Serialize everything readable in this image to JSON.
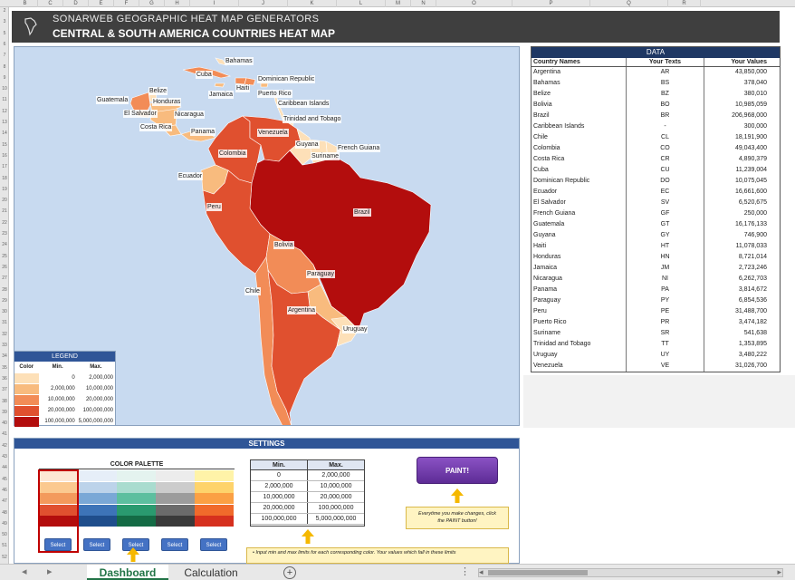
{
  "column_headers": [
    "B",
    "C",
    "D",
    "E",
    "F",
    "G",
    "H",
    "I",
    "J",
    "K",
    "L",
    "M",
    "N",
    "O",
    "P",
    "Q",
    "R"
  ],
  "row_numbers": [
    "2",
    "3",
    "5",
    "6",
    "7",
    "8",
    "9",
    "10",
    "11",
    "12",
    "13",
    "14",
    "15",
    "16",
    "17",
    "18",
    "19",
    "20",
    "21",
    "22",
    "23",
    "24",
    "25",
    "26",
    "27",
    "28",
    "29",
    "30",
    "31",
    "32",
    "33",
    "34",
    "35",
    "36",
    "37",
    "38",
    "39",
    "40",
    "41",
    "42",
    "43",
    "44",
    "45",
    "46",
    "47",
    "48",
    "49",
    "50",
    "51",
    "52"
  ],
  "header": {
    "subtitle": "SONARWEB GEOGRAPHIC HEAT MAP GENERATORS",
    "title": "CENTRAL & SOUTH AMERICA COUNTRIES HEAT MAP"
  },
  "map_labels": {
    "bahamas": "Bahamas",
    "cuba": "Cuba",
    "dominican_republic": "Dominican Republic",
    "haiti": "Haiti",
    "jamaica": "Jamaica",
    "puerto_rico": "Puerto Rico",
    "belize": "Belize",
    "guatemala": "Guatemala",
    "honduras": "Honduras",
    "el_salvador": "El Salvador",
    "nicaragua": "Nicaragua",
    "caribbean_islands": "Caribbean Islands",
    "costa_rica": "Costa Rica",
    "panama": "Panama",
    "trinidad": "Trinidad and Tobago",
    "venezuela": "Venezuela",
    "guyana": "Guyana",
    "colombia": "Colombia",
    "suriname": "Suriname",
    "french_guiana": "French Guiana",
    "ecuador": "Ecuador",
    "brazil": "Brazil",
    "peru": "Peru",
    "bolivia": "Bolivia",
    "paraguay": "Paraguay",
    "chile": "Chile",
    "argentina": "Argentina",
    "uruguay": "Uruguay"
  },
  "legend": {
    "title": "LEGEND",
    "col_color": "Color",
    "col_min": "Min.",
    "col_max": "Max.",
    "rows": [
      {
        "color": "#fde0b8",
        "min": "0",
        "max": "2,000,000"
      },
      {
        "color": "#f8bb7e",
        "min": "2,000,000",
        "max": "10,000,000"
      },
      {
        "color": "#f28c57",
        "min": "10,000,000",
        "max": "20,000,000"
      },
      {
        "color": "#e0502f",
        "min": "20,000,000",
        "max": "100,000,000"
      },
      {
        "color": "#b30d0d",
        "min": "100,000,000",
        "max": "5,000,000,000"
      }
    ]
  },
  "data_table": {
    "title": "DATA",
    "col_name": "Country Names",
    "col_code": "Your Texts",
    "col_value": "Your Values",
    "rows": [
      {
        "name": "Argentina",
        "code": "AR",
        "value": "43,850,000"
      },
      {
        "name": "Bahamas",
        "code": "BS",
        "value": "378,040"
      },
      {
        "name": "Belize",
        "code": "BZ",
        "value": "380,010"
      },
      {
        "name": "Bolivia",
        "code": "BO",
        "value": "10,985,059"
      },
      {
        "name": "Brazil",
        "code": "BR",
        "value": "206,968,000"
      },
      {
        "name": "Caribbean Islands",
        "code": "-",
        "value": "300,000"
      },
      {
        "name": "Chile",
        "code": "CL",
        "value": "18,191,900"
      },
      {
        "name": "Colombia",
        "code": "CO",
        "value": "49,043,400"
      },
      {
        "name": "Costa Rica",
        "code": "CR",
        "value": "4,890,379"
      },
      {
        "name": "Cuba",
        "code": "CU",
        "value": "11,239,004"
      },
      {
        "name": "Dominican Republic",
        "code": "DO",
        "value": "10,075,045"
      },
      {
        "name": "Ecuador",
        "code": "EC",
        "value": "16,661,600"
      },
      {
        "name": "El Salvador",
        "code": "SV",
        "value": "6,520,675"
      },
      {
        "name": "French Guiana",
        "code": "GF",
        "value": "250,000"
      },
      {
        "name": "Guatemala",
        "code": "GT",
        "value": "16,176,133"
      },
      {
        "name": "Guyana",
        "code": "GY",
        "value": "746,900"
      },
      {
        "name": "Haiti",
        "code": "HT",
        "value": "11,078,033"
      },
      {
        "name": "Honduras",
        "code": "HN",
        "value": "8,721,014"
      },
      {
        "name": "Jamaica",
        "code": "JM",
        "value": "2,723,246"
      },
      {
        "name": "Nicaragua",
        "code": "NI",
        "value": "6,262,703"
      },
      {
        "name": "Panama",
        "code": "PA",
        "value": "3,814,672"
      },
      {
        "name": "Paraguay",
        "code": "PY",
        "value": "6,854,536"
      },
      {
        "name": "Peru",
        "code": "PE",
        "value": "31,488,700"
      },
      {
        "name": "Puerto Rico",
        "code": "PR",
        "value": "3,474,182"
      },
      {
        "name": "Suriname",
        "code": "SR",
        "value": "541,638"
      },
      {
        "name": "Trinidad and Tobago",
        "code": "TT",
        "value": "1,353,895"
      },
      {
        "name": "Uruguay",
        "code": "UY",
        "value": "3,480,222"
      },
      {
        "name": "Venezuela",
        "code": "VE",
        "value": "31,026,700"
      }
    ]
  },
  "settings": {
    "title": "SETTINGS",
    "palette_title": "COLOR PALETTE",
    "palettes": [
      [
        "#fde8d4",
        "#fbc98f",
        "#f39a5c",
        "#e0502f",
        "#b30d0d"
      ],
      [
        "#e6eef8",
        "#bcd3ea",
        "#7aa8d6",
        "#3d74b8",
        "#1f4e8c"
      ],
      [
        "#e4f3ef",
        "#a9dccf",
        "#5dbf9f",
        "#2a9a6f",
        "#146b45"
      ],
      [
        "#ececec",
        "#cccccc",
        "#9c9c9c",
        "#6b6b6b",
        "#3a3a3a"
      ],
      [
        "#fff3a8",
        "#fed36b",
        "#fba044",
        "#f06a2b",
        "#d6301e"
      ]
    ],
    "select_label": "Select",
    "minmax": {
      "col_min": "Min.",
      "col_max": "Max.",
      "rows": [
        {
          "min": "0",
          "max": "2,000,000"
        },
        {
          "min": "2,000,000",
          "max": "10,000,000"
        },
        {
          "min": "10,000,000",
          "max": "20,000,000"
        },
        {
          "min": "20,000,000",
          "max": "100,000,000"
        },
        {
          "min": "100,000,000",
          "max": "5,000,000,000"
        }
      ]
    },
    "paint_label": "PAINT!",
    "paint_note_line1": "Everytime you make changes, click",
    "paint_note_line2": "the PAINT button!",
    "info_note": "Input min and max limits for each corresponding color. Your values which fall in these limits"
  },
  "tabs": {
    "active": "Dashboard",
    "other": "Calculation",
    "add": "+"
  },
  "colors": {
    "accent": "#2f5597",
    "header_dark": "#3f3f3f",
    "excel_green": "#217346",
    "map_sea": "#c8daf0"
  }
}
